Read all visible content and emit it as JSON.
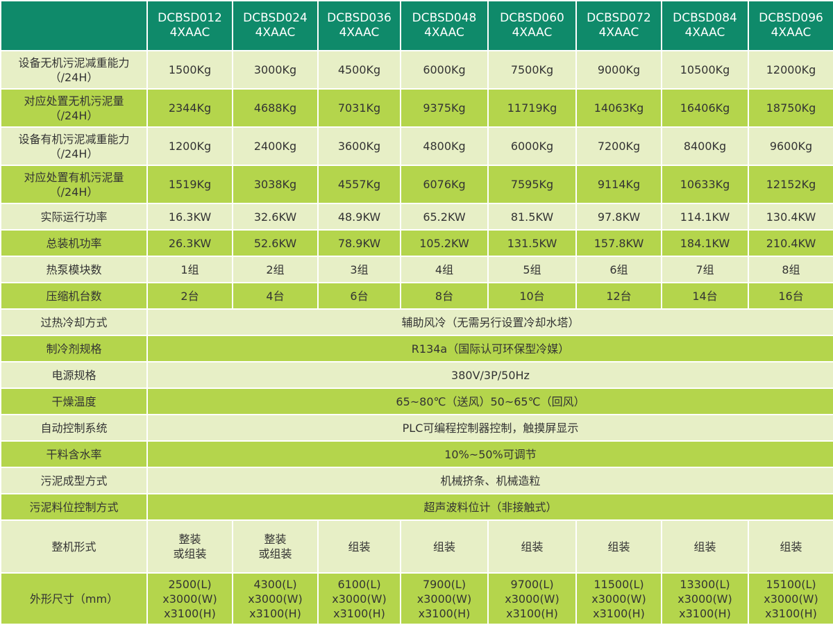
{
  "header": {
    "corner": "",
    "models": [
      "DCBSD012\n4XAAC",
      "DCBSD024\n4XAAC",
      "DCBSD036\n4XAAC",
      "DCBSD048\n4XAAC",
      "DCBSD060\n4XAAC",
      "DCBSD072\n4XAAC",
      "DCBSD084\n4XAAC",
      "DCBSD096\n4XAAC"
    ]
  },
  "rows": [
    {
      "label": "设备无机污泥减重能力\n（/24H）",
      "values": [
        "1500Kg",
        "3000Kg",
        "4500Kg",
        "6000Kg",
        "7500Kg",
        "9000Kg",
        "10500Kg",
        "12000Kg"
      ]
    },
    {
      "label": "对应处置无机污泥量\n（/24H）",
      "values": [
        "2344Kg",
        "4688Kg",
        "7031Kg",
        "9375Kg",
        "11719Kg",
        "14063Kg",
        "16406Kg",
        "18750Kg"
      ]
    },
    {
      "label": "设备有机污泥减重能力\n（/24H）",
      "values": [
        "1200Kg",
        "2400Kg",
        "3600Kg",
        "4800Kg",
        "6000Kg",
        "7200Kg",
        "8400Kg",
        "9600Kg"
      ]
    },
    {
      "label": "对应处置有机污泥量\n（/24H）",
      "values": [
        "1519Kg",
        "3038Kg",
        "4557Kg",
        "6076Kg",
        "7595Kg",
        "9114Kg",
        "10633Kg",
        "12152Kg"
      ]
    },
    {
      "label": "实际运行功率",
      "values": [
        "16.3KW",
        "32.6KW",
        "48.9KW",
        "65.2KW",
        "81.5KW",
        "97.8KW",
        "114.1KW",
        "130.4KW"
      ]
    },
    {
      "label": "总装机功率",
      "values": [
        "26.3KW",
        "52.6KW",
        "78.9KW",
        "105.2KW",
        "131.5KW",
        "157.8KW",
        "184.1KW",
        "210.4KW"
      ]
    },
    {
      "label": "热泵模块数",
      "values": [
        "1组",
        "2组",
        "3组",
        "4组",
        "5组",
        "6组",
        "7组",
        "8组"
      ]
    },
    {
      "label": "压缩机台数",
      "values": [
        "2台",
        "4台",
        "6台",
        "8台",
        "10台",
        "12台",
        "14台",
        "16台"
      ]
    },
    {
      "label": "过热冷却方式",
      "span": "辅助风冷（无需另行设置冷却水塔）"
    },
    {
      "label": "制冷剂规格",
      "span": "R134a（国际认可环保型冷媒）"
    },
    {
      "label": "电源规格",
      "span": "380V/3P/50Hz"
    },
    {
      "label": "干燥温度",
      "span": "65~80℃（送风）50~65℃（回风）"
    },
    {
      "label": "自动控制系统",
      "span": "PLC可编程控制器控制，触摸屏显示"
    },
    {
      "label": "干料含水率",
      "span": "10%~50%可调节"
    },
    {
      "label": "污泥成型方式",
      "span": "机械挤条、机械造粒"
    },
    {
      "label": "污泥料位控制方式",
      "span": "超声波料位计（非接触式）"
    },
    {
      "label": "整机形式",
      "values": [
        "整装\n或组装",
        "整装\n或组装",
        "组装",
        "组装",
        "组装",
        "组装",
        "组装",
        "组装"
      ]
    },
    {
      "label": "外形尺寸（mm）",
      "values": [
        "2500(L)\nx3000(W)\nx3100(H)",
        "4300(L)\nx3000(W)\nx3100(H)",
        "6100(L)\nx3000(W)\nx3100(H)",
        "7900(L)\nx3000(W)\nx3100(H)",
        "9700(L)\nx3000(W)\nx3100(H)",
        "11500(L)\nx3000(W)\nx3100(H)",
        "13300(L)\nx3000(W)\nx3100(H)",
        "15100(L)\nx3000(W)\nx3100(H)"
      ]
    }
  ],
  "colors": {
    "header": "#0f8a6a",
    "row_light": "#e7efc6",
    "row_green": "#b4d54c",
    "text": "#333333"
  }
}
